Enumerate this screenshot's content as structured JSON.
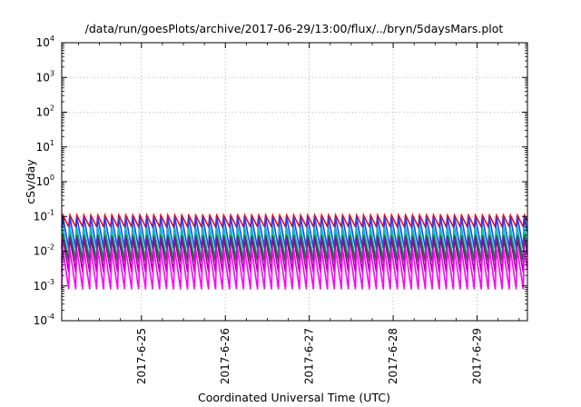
{
  "chart_data": {
    "type": "line",
    "title": "/data/run/goesPlots/archive/2017-06-29/13:00/flux/../bryn/5daysMars.plot",
    "xlabel": "Coordinated Universal Time (UTC)",
    "ylabel": "cSv/day",
    "y_scale": "log",
    "ylim": [
      0.0001,
      10000
    ],
    "y_ticks": [
      {
        "base": "10",
        "exp": "-4"
      },
      {
        "base": "10",
        "exp": "-3"
      },
      {
        "base": "10",
        "exp": "-2"
      },
      {
        "base": "10",
        "exp": "-1"
      },
      {
        "base": "10",
        "exp": "0"
      },
      {
        "base": "10",
        "exp": "1"
      },
      {
        "base": "10",
        "exp": "2"
      },
      {
        "base": "10",
        "exp": "3"
      },
      {
        "base": "10",
        "exp": "4"
      }
    ],
    "x_ticks": [
      "2017-6-25",
      "2017-6-26",
      "2017-6-27",
      "2017-6-28",
      "2017-6-29"
    ],
    "xlim_days": [
      24.05,
      29.6
    ],
    "grid": true,
    "legend": "none",
    "pattern": {
      "period_hours": 2,
      "note_peak_values": [
        0.11,
        0.03
      ],
      "trough_value_min": 0.0008
    },
    "series": [
      {
        "color": "#ff0000",
        "peak": 0.11,
        "trough": 0.05
      },
      {
        "color": "#2040ff",
        "peak": 0.1,
        "trough": 0.012
      },
      {
        "color": "#00c0c0",
        "peak": 0.05,
        "trough": 0.006
      },
      {
        "color": "#008000",
        "peak": 0.03,
        "trough": 0.005
      },
      {
        "color": "#a000a0",
        "peak": 0.025,
        "trough": 0.0025
      },
      {
        "color": "#ff00ff",
        "peak": 0.012,
        "trough": 0.0008
      }
    ],
    "colors": {
      "grid": "#a0a0a0",
      "axes": "#000000"
    }
  }
}
